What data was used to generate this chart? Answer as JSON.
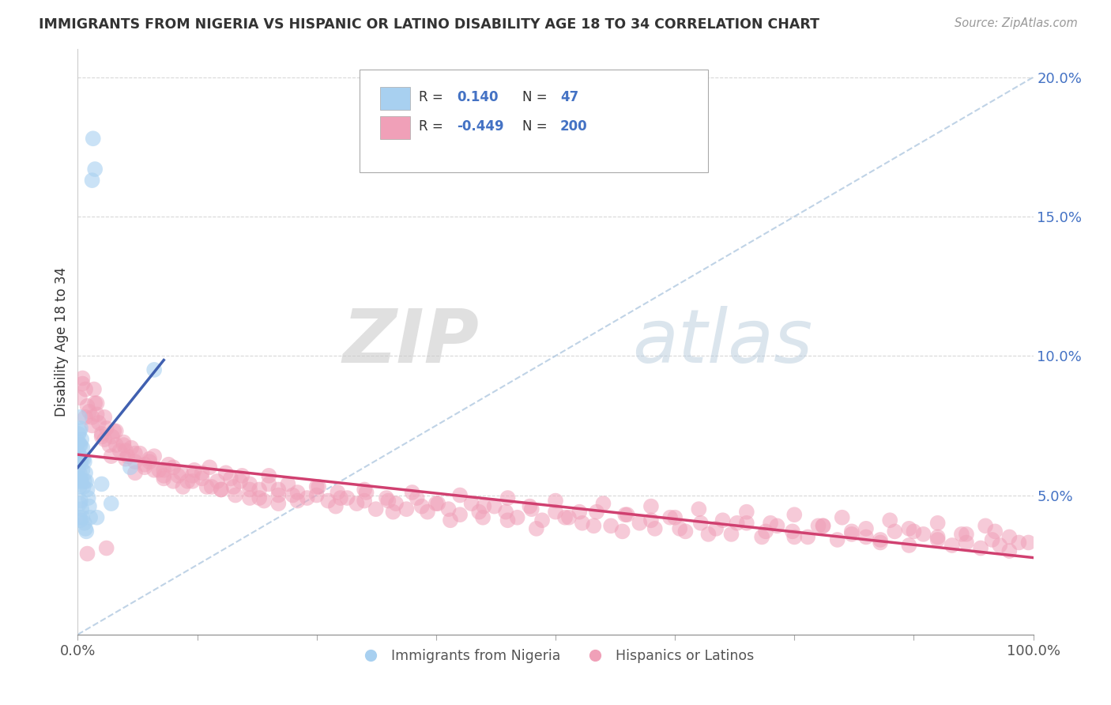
{
  "title": "IMMIGRANTS FROM NIGERIA VS HISPANIC OR LATINO DISABILITY AGE 18 TO 34 CORRELATION CHART",
  "source": "Source: ZipAtlas.com",
  "ylabel": "Disability Age 18 to 34",
  "xlim": [
    0.0,
    1.0
  ],
  "ylim": [
    0.0,
    0.21
  ],
  "color_blue": "#a8d0f0",
  "color_pink": "#f0a0b8",
  "line_blue": "#4060b0",
  "line_pink": "#d04070",
  "dash_color": "#b0c8e0",
  "grid_color": "#d8d8d8",
  "watermark_color": "#d0dce8",
  "nigeria_x": [
    0.001,
    0.001,
    0.001,
    0.001,
    0.001,
    0.002,
    0.002,
    0.002,
    0.002,
    0.002,
    0.002,
    0.002,
    0.002,
    0.003,
    0.003,
    0.003,
    0.003,
    0.003,
    0.003,
    0.004,
    0.004,
    0.004,
    0.004,
    0.005,
    0.005,
    0.005,
    0.006,
    0.006,
    0.007,
    0.007,
    0.007,
    0.008,
    0.008,
    0.009,
    0.009,
    0.01,
    0.011,
    0.012,
    0.013,
    0.015,
    0.016,
    0.018,
    0.02,
    0.025,
    0.035,
    0.055,
    0.08
  ],
  "nigeria_y": [
    0.072,
    0.069,
    0.065,
    0.06,
    0.055,
    0.078,
    0.073,
    0.068,
    0.063,
    0.058,
    0.053,
    0.047,
    0.042,
    0.074,
    0.068,
    0.062,
    0.056,
    0.048,
    0.041,
    0.07,
    0.063,
    0.055,
    0.045,
    0.067,
    0.059,
    0.042,
    0.063,
    0.053,
    0.062,
    0.055,
    0.04,
    0.058,
    0.038,
    0.055,
    0.037,
    0.052,
    0.049,
    0.046,
    0.042,
    0.163,
    0.178,
    0.167,
    0.042,
    0.054,
    0.047,
    0.06,
    0.095
  ],
  "hispanic_x": [
    0.002,
    0.005,
    0.008,
    0.01,
    0.012,
    0.015,
    0.017,
    0.02,
    0.022,
    0.025,
    0.028,
    0.03,
    0.033,
    0.036,
    0.04,
    0.044,
    0.048,
    0.052,
    0.056,
    0.06,
    0.065,
    0.07,
    0.075,
    0.08,
    0.085,
    0.09,
    0.095,
    0.1,
    0.108,
    0.115,
    0.122,
    0.13,
    0.138,
    0.146,
    0.155,
    0.163,
    0.172,
    0.18,
    0.19,
    0.2,
    0.21,
    0.22,
    0.23,
    0.24,
    0.252,
    0.262,
    0.272,
    0.282,
    0.292,
    0.302,
    0.312,
    0.323,
    0.333,
    0.344,
    0.355,
    0.366,
    0.377,
    0.388,
    0.4,
    0.412,
    0.424,
    0.436,
    0.448,
    0.46,
    0.473,
    0.486,
    0.5,
    0.514,
    0.528,
    0.543,
    0.558,
    0.573,
    0.588,
    0.604,
    0.62,
    0.636,
    0.652,
    0.668,
    0.684,
    0.7,
    0.716,
    0.732,
    0.748,
    0.764,
    0.78,
    0.795,
    0.81,
    0.825,
    0.84,
    0.855,
    0.87,
    0.885,
    0.9,
    0.915,
    0.93,
    0.945,
    0.957,
    0.965,
    0.975,
    0.985,
    0.02,
    0.04,
    0.06,
    0.005,
    0.015,
    0.025,
    0.035,
    0.05,
    0.07,
    0.09,
    0.11,
    0.13,
    0.15,
    0.17,
    0.19,
    0.21,
    0.23,
    0.25,
    0.27,
    0.3,
    0.33,
    0.36,
    0.39,
    0.42,
    0.45,
    0.48,
    0.51,
    0.54,
    0.57,
    0.6,
    0.63,
    0.66,
    0.69,
    0.72,
    0.75,
    0.78,
    0.81,
    0.84,
    0.87,
    0.9,
    0.93,
    0.96,
    0.01,
    0.03,
    0.05,
    0.08,
    0.1,
    0.12,
    0.14,
    0.16,
    0.18,
    0.2,
    0.225,
    0.25,
    0.275,
    0.3,
    0.325,
    0.35,
    0.375,
    0.4,
    0.425,
    0.45,
    0.475,
    0.5,
    0.525,
    0.55,
    0.575,
    0.6,
    0.625,
    0.65,
    0.675,
    0.7,
    0.725,
    0.75,
    0.775,
    0.8,
    0.825,
    0.85,
    0.875,
    0.9,
    0.925,
    0.95,
    0.975,
    0.995,
    0.008,
    0.018,
    0.028,
    0.038,
    0.048,
    0.06,
    0.075,
    0.09,
    0.105,
    0.12,
    0.135,
    0.15,
    0.165,
    0.18,
    0.195,
    0.21
  ],
  "hispanic_y": [
    0.085,
    0.092,
    0.078,
    0.082,
    0.08,
    0.075,
    0.088,
    0.083,
    0.076,
    0.072,
    0.07,
    0.074,
    0.068,
    0.071,
    0.073,
    0.066,
    0.069,
    0.064,
    0.067,
    0.062,
    0.065,
    0.06,
    0.063,
    0.064,
    0.059,
    0.057,
    0.061,
    0.06,
    0.058,
    0.055,
    0.059,
    0.056,
    0.06,
    0.055,
    0.058,
    0.053,
    0.057,
    0.054,
    0.052,
    0.057,
    0.05,
    0.054,
    0.051,
    0.049,
    0.053,
    0.048,
    0.051,
    0.049,
    0.047,
    0.051,
    0.045,
    0.049,
    0.047,
    0.045,
    0.049,
    0.044,
    0.047,
    0.045,
    0.043,
    0.047,
    0.042,
    0.046,
    0.044,
    0.042,
    0.046,
    0.041,
    0.044,
    0.042,
    0.04,
    0.044,
    0.039,
    0.043,
    0.04,
    0.038,
    0.042,
    0.037,
    0.04,
    0.038,
    0.036,
    0.04,
    0.035,
    0.039,
    0.037,
    0.035,
    0.039,
    0.034,
    0.037,
    0.035,
    0.033,
    0.037,
    0.032,
    0.036,
    0.034,
    0.032,
    0.036,
    0.031,
    0.034,
    0.032,
    0.03,
    0.033,
    0.079,
    0.068,
    0.058,
    0.09,
    0.078,
    0.071,
    0.064,
    0.066,
    0.061,
    0.056,
    0.053,
    0.058,
    0.052,
    0.055,
    0.049,
    0.052,
    0.048,
    0.05,
    0.046,
    0.048,
    0.044,
    0.046,
    0.041,
    0.044,
    0.041,
    0.038,
    0.042,
    0.039,
    0.037,
    0.041,
    0.038,
    0.036,
    0.04,
    0.037,
    0.035,
    0.039,
    0.036,
    0.034,
    0.038,
    0.035,
    0.033,
    0.037,
    0.029,
    0.031,
    0.063,
    0.059,
    0.055,
    0.057,
    0.053,
    0.056,
    0.052,
    0.054,
    0.05,
    0.053,
    0.049,
    0.052,
    0.048,
    0.051,
    0.047,
    0.05,
    0.046,
    0.049,
    0.045,
    0.048,
    0.044,
    0.047,
    0.043,
    0.046,
    0.042,
    0.045,
    0.041,
    0.044,
    0.04,
    0.043,
    0.039,
    0.042,
    0.038,
    0.041,
    0.037,
    0.04,
    0.036,
    0.039,
    0.035,
    0.033,
    0.088,
    0.083,
    0.078,
    0.073,
    0.068,
    0.065,
    0.062,
    0.059,
    0.057,
    0.055,
    0.053,
    0.052,
    0.05,
    0.049,
    0.048,
    0.047
  ]
}
